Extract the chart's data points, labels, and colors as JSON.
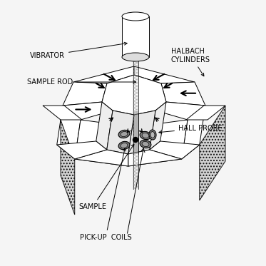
{
  "bg_color": "#f5f5f5",
  "text_color": "#000000",
  "labels": {
    "vibrator": "VIBRATOR",
    "sample_rod": "SAMPLE ROD",
    "halbach": "HALBACH\nCYLINDERS",
    "hall_probe": "HALL PROBE",
    "sample": "SAMPLE",
    "pickup_coils": "PICK-UP  COILS"
  },
  "label_fontsize": 7.0,
  "lw": 0.7
}
